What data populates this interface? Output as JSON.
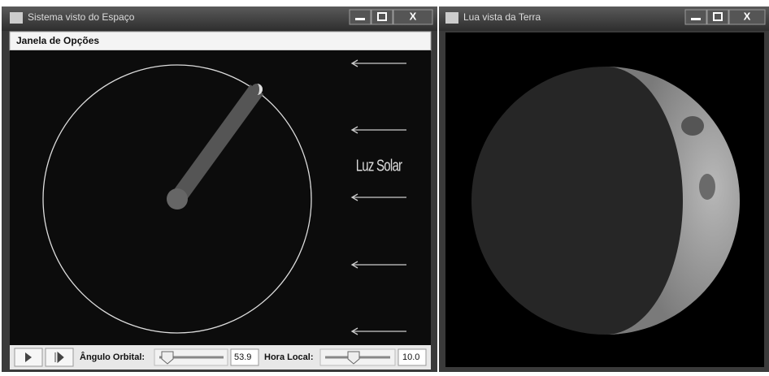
{
  "left_window": {
    "title": "Sistema visto do Espaço",
    "menu": "Janela de Opções",
    "sunlight_label": "Luz Solar",
    "controls": {
      "angle_label": "Ângulo Orbital:",
      "angle_value": "53.9",
      "hour_label": "Hora Local:",
      "hour_value": "10.0"
    },
    "close": "X"
  },
  "right_window": {
    "title": "Lua vista da Terra",
    "close": "X"
  }
}
